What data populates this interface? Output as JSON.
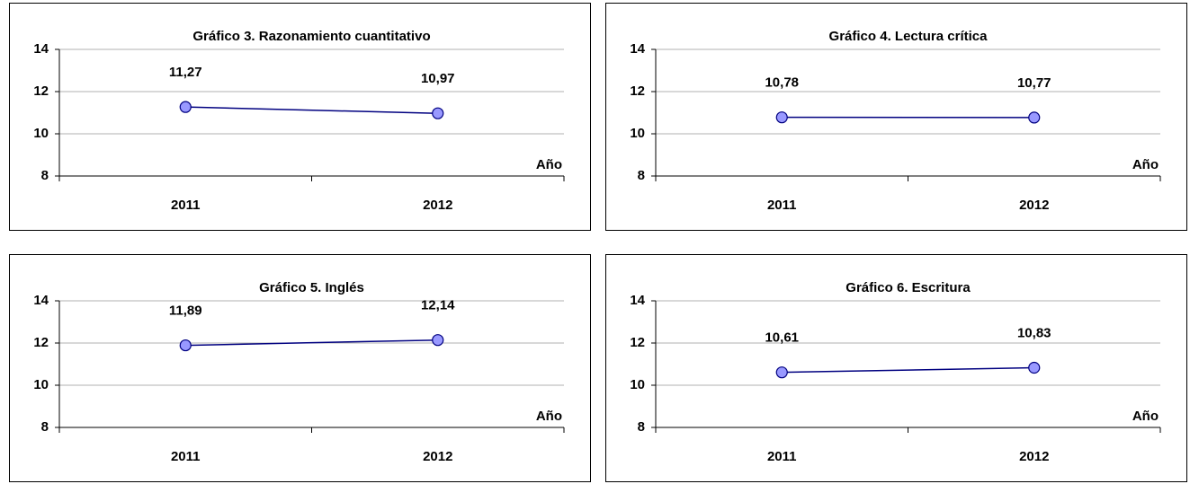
{
  "chart_data": [
    {
      "type": "line",
      "title": "Gráfico 3. Razonamiento cuantitativo",
      "x_label": "Año",
      "categories": [
        "2011",
        "2012"
      ],
      "series": [
        {
          "name": "Gráfico 3. Razonamiento cuantitativo",
          "color": "#000080",
          "marker_color": "#9999ff",
          "values": [
            11.27,
            10.97
          ],
          "value_labels": [
            "11,27",
            "10,97"
          ]
        }
      ],
      "ylim": [
        8,
        14
      ],
      "yticks": [
        8,
        10,
        12,
        14
      ],
      "grid": true
    },
    {
      "type": "line",
      "title": "Gráfico 4. Lectura crítica",
      "x_label": "Año",
      "categories": [
        "2011",
        "2012"
      ],
      "series": [
        {
          "name": "Gráfico 4. Lectura crítica",
          "color": "#000080",
          "marker_color": "#9999ff",
          "values": [
            10.78,
            10.77
          ],
          "value_labels": [
            "10,78",
            "10,77"
          ]
        }
      ],
      "ylim": [
        8,
        14
      ],
      "yticks": [
        8,
        10,
        12,
        14
      ],
      "grid": true
    },
    {
      "type": "line",
      "title": "Gráfico 5. Inglés",
      "x_label": "Año",
      "categories": [
        "2011",
        "2012"
      ],
      "series": [
        {
          "name": "Gráfico 5. Inglés",
          "color": "#000080",
          "marker_color": "#9999ff",
          "values": [
            11.89,
            12.14
          ],
          "value_labels": [
            "11,89",
            "12,14"
          ]
        }
      ],
      "ylim": [
        8,
        14
      ],
      "yticks": [
        8,
        10,
        12,
        14
      ],
      "grid": true
    },
    {
      "type": "line",
      "title": "Gráfico 6. Escritura",
      "x_label": "Año",
      "categories": [
        "2011",
        "2012"
      ],
      "series": [
        {
          "name": "Gráfico 6. Escritura",
          "color": "#000080",
          "marker_color": "#9999ff",
          "values": [
            10.61,
            10.83
          ],
          "value_labels": [
            "10,61",
            "10,83"
          ]
        }
      ],
      "ylim": [
        8,
        14
      ],
      "yticks": [
        8,
        10,
        12,
        14
      ],
      "grid": true
    }
  ]
}
